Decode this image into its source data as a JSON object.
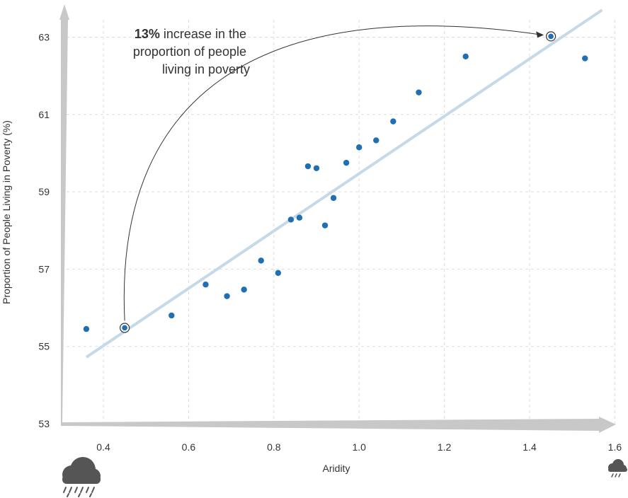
{
  "chart_data": {
    "type": "scatter",
    "xlabel": "Aridity",
    "ylabel": "Proportion of People Living in Poverty (%)",
    "xlim": [
      0.3,
      1.6
    ],
    "ylim": [
      53,
      63
    ],
    "x_ticks": [
      "0.4",
      "0.6",
      "0.8",
      "1.0",
      "1.2",
      "1.4",
      "1.6"
    ],
    "y_ticks": [
      "63",
      "61",
      "59",
      "57",
      "55",
      "53"
    ],
    "grid": true,
    "points": [
      {
        "x": 0.36,
        "y": 55.45
      },
      {
        "x": 0.45,
        "y": 55.48
      },
      {
        "x": 0.56,
        "y": 55.8
      },
      {
        "x": 0.64,
        "y": 56.6
      },
      {
        "x": 0.69,
        "y": 56.3
      },
      {
        "x": 0.73,
        "y": 56.47
      },
      {
        "x": 0.77,
        "y": 57.22
      },
      {
        "x": 0.81,
        "y": 56.9
      },
      {
        "x": 0.84,
        "y": 58.28
      },
      {
        "x": 0.86,
        "y": 58.33
      },
      {
        "x": 0.88,
        "y": 59.66
      },
      {
        "x": 0.9,
        "y": 59.61
      },
      {
        "x": 0.92,
        "y": 58.13
      },
      {
        "x": 0.94,
        "y": 58.84
      },
      {
        "x": 0.97,
        "y": 59.75
      },
      {
        "x": 1.0,
        "y": 60.15
      },
      {
        "x": 1.04,
        "y": 60.33
      },
      {
        "x": 1.08,
        "y": 60.82
      },
      {
        "x": 1.14,
        "y": 61.57
      },
      {
        "x": 1.25,
        "y": 62.5
      },
      {
        "x": 1.45,
        "y": 63.02
      },
      {
        "x": 1.53,
        "y": 62.45
      }
    ],
    "highlighted_points": [
      {
        "x": 0.45,
        "y": 55.48
      },
      {
        "x": 1.45,
        "y": 63.02
      }
    ],
    "trend_line": {
      "x": [
        0.36,
        1.57
      ],
      "y": [
        54.72,
        63.7
      ]
    },
    "annotation": {
      "bold": "13%",
      "line1": " increase in the",
      "line2": "proportion of people",
      "line3": "living in poverty"
    },
    "colors": {
      "points": "#1f6fb2",
      "trend": "#c5d9e8",
      "axis_arrow": "#c8c8c8",
      "grid": "#dddddd",
      "icon": "#555555"
    },
    "icons": {
      "left": "heavy-rain-cloud-icon",
      "right": "light-rain-cloud-icon"
    }
  }
}
